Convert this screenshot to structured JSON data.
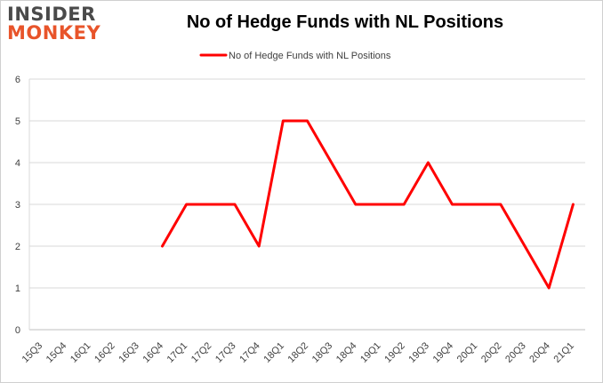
{
  "logo": {
    "line1": "INSIDER",
    "line2": "MONKEY"
  },
  "chart_data": {
    "type": "line",
    "title": "No of Hedge Funds with NL Positions",
    "xlabel": "",
    "ylabel": "",
    "ylim": [
      0,
      6
    ],
    "yticks": [
      "0",
      "1",
      "2",
      "3",
      "4",
      "5",
      "6"
    ],
    "categories": [
      "15Q3",
      "15Q4",
      "16Q1",
      "16Q2",
      "16Q3",
      "16Q4",
      "17Q1",
      "17Q2",
      "17Q3",
      "17Q4",
      "18Q1",
      "18Q2",
      "18Q3",
      "18Q4",
      "19Q1",
      "19Q2",
      "19Q3",
      "19Q4",
      "20Q1",
      "20Q2",
      "20Q3",
      "20Q4",
      "21Q1"
    ],
    "series": [
      {
        "name": "No of Hedge Funds with NL Positions",
        "color": "#ff0000",
        "values": [
          null,
          null,
          null,
          null,
          null,
          2,
          3,
          3,
          3,
          2,
          5,
          5,
          4,
          3,
          3,
          3,
          4,
          3,
          3,
          3,
          2,
          1,
          3
        ]
      }
    ],
    "grid": true,
    "legend": "top-center"
  }
}
